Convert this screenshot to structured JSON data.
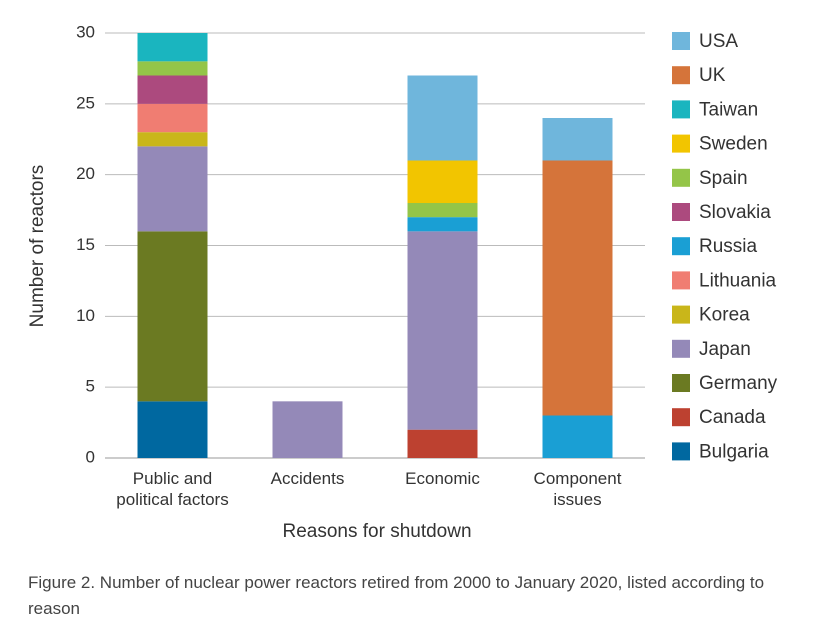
{
  "chart_data": {
    "type": "stacked_bar",
    "xlabel": "Reasons for shutdown",
    "ylabel": "Number of reactors",
    "caption": "Figure 2. Number of nuclear power reactors retired from 2000 to January 2020, listed according to reason",
    "categories": [
      "Public and\npolitical factors",
      "Accidents",
      "Economic",
      "Component\nissues"
    ],
    "series": [
      {
        "name": "Bulgaria",
        "color": "#0068a0",
        "values": [
          4,
          0,
          0,
          0
        ]
      },
      {
        "name": "Canada",
        "color": "#bd4130",
        "values": [
          0,
          0,
          2,
          0
        ]
      },
      {
        "name": "Germany",
        "color": "#6b7a22",
        "values": [
          12,
          0,
          0,
          0
        ]
      },
      {
        "name": "Japan",
        "color": "#9489b8",
        "values": [
          6,
          4,
          14,
          0
        ]
      },
      {
        "name": "Korea",
        "color": "#c9b61a",
        "values": [
          1,
          0,
          0,
          0
        ]
      },
      {
        "name": "Lithuania",
        "color": "#f07d72",
        "values": [
          2,
          0,
          0,
          0
        ]
      },
      {
        "name": "Russia",
        "color": "#1a9fd4",
        "values": [
          0,
          0,
          1,
          3
        ]
      },
      {
        "name": "Slovakia",
        "color": "#ac4a7e",
        "values": [
          2,
          0,
          0,
          0
        ]
      },
      {
        "name": "Spain",
        "color": "#94c548",
        "values": [
          1,
          0,
          1,
          0
        ]
      },
      {
        "name": "Sweden",
        "color": "#f2c500",
        "values": [
          0,
          0,
          3,
          0
        ]
      },
      {
        "name": "Taiwan",
        "color": "#1ab5bf",
        "values": [
          2,
          0,
          0,
          0
        ]
      },
      {
        "name": "UK",
        "color": "#d5743a",
        "values": [
          0,
          0,
          0,
          18
        ]
      },
      {
        "name": "USA",
        "color": "#6fb6dc",
        "values": [
          0,
          0,
          6,
          3
        ]
      }
    ],
    "ylim": [
      0,
      30
    ],
    "yticks": [
      0,
      5,
      10,
      15,
      20,
      25,
      30
    ],
    "grid": true,
    "legend": "right"
  }
}
